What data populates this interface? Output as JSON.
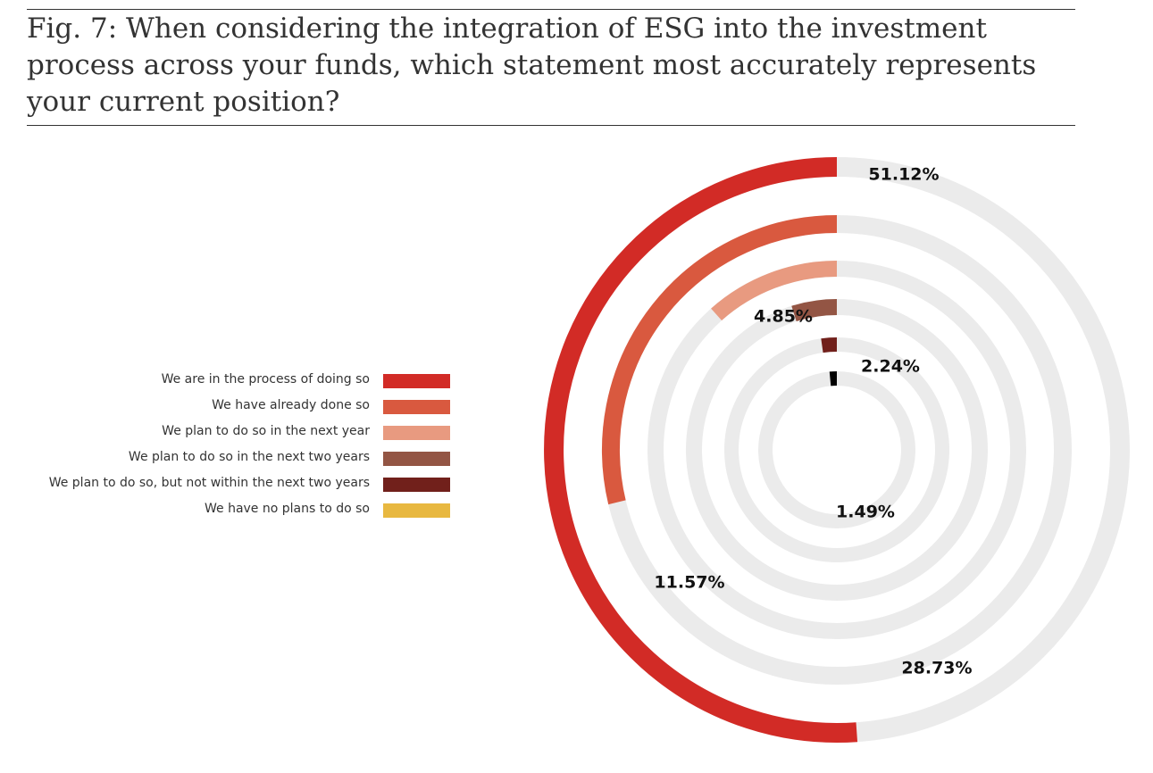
{
  "chart_data": {
    "type": "radial-bar",
    "title": "Fig. 7: When considering the integration of ESG into the investment process across your funds, which statement most accurately represents your current position?",
    "unit": "%",
    "track_color": "#ebebeb",
    "series": [
      {
        "name": "We are in the process of doing so",
        "value": 51.12,
        "label": "51.12%",
        "color": "#d22b26"
      },
      {
        "name": "We have already done so",
        "value": 28.73,
        "label": "28.73%",
        "color": "#d9593f"
      },
      {
        "name": "We plan to do so in the next year",
        "value": 11.57,
        "label": "11.57%",
        "color": "#e89a80"
      },
      {
        "name": "We plan to do so in the next two years",
        "value": 4.85,
        "label": "4.85%",
        "color": "#935544"
      },
      {
        "name": "We plan to do so, but not within the next two years",
        "value": 2.24,
        "label": "2.24%",
        "color": "#71201b"
      },
      {
        "name": "We have no plans to do so",
        "value": 1.49,
        "label": "1.49%",
        "color": "#000000",
        "legend_color": "#e8b840"
      }
    ]
  }
}
